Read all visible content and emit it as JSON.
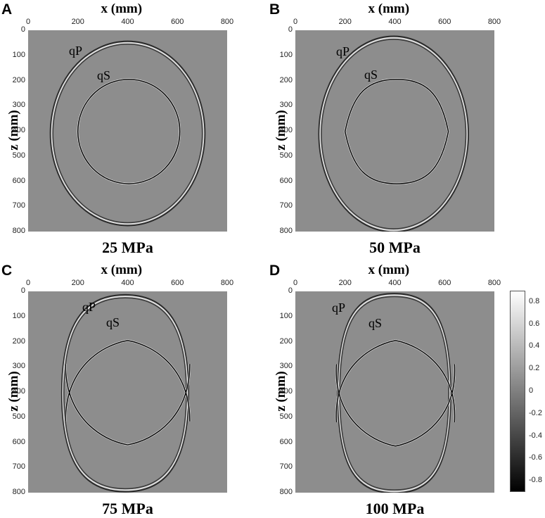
{
  "chart_data": [
    {
      "type": "heatmap",
      "panel": "A",
      "title": "25 MPa",
      "xlabel": "x (mm)",
      "ylabel": "z (mm)",
      "xlim": [
        0,
        800
      ],
      "ylim": [
        0,
        800
      ],
      "xticks": [
        "0",
        "200",
        "400",
        "600",
        "800"
      ],
      "yticks": [
        "0",
        "100",
        "200",
        "300",
        "400",
        "500",
        "600",
        "700",
        "800"
      ],
      "wavefronts": {
        "qP": {
          "label": "qP",
          "x_extent": [
            95,
            705
          ],
          "z_extent": [
            50,
            770
          ]
        },
        "qS": {
          "label": "qS",
          "x_extent": [
            200,
            610
          ],
          "z_extent": [
            195,
            610
          ]
        }
      }
    },
    {
      "type": "heatmap",
      "panel": "B",
      "title": "50 MPa",
      "xlabel": "x (mm)",
      "ylabel": "z (mm)",
      "xlim": [
        0,
        800
      ],
      "ylim": [
        0,
        800
      ],
      "xticks": [
        "0",
        "200",
        "400",
        "600",
        "800"
      ],
      "yticks": [
        "0",
        "100",
        "200",
        "300",
        "400",
        "500",
        "600",
        "700",
        "800"
      ],
      "wavefronts": {
        "qP": {
          "label": "qP",
          "x_extent": [
            100,
            690
          ],
          "z_extent": [
            30,
            795
          ]
        },
        "qS": {
          "label": "qS",
          "x_extent": [
            200,
            615
          ],
          "z_extent": [
            195,
            610
          ]
        }
      }
    },
    {
      "type": "heatmap",
      "panel": "C",
      "title": "75 MPa",
      "xlabel": "x (mm)",
      "ylabel": "z (mm)",
      "xlim": [
        0,
        800
      ],
      "ylim": [
        0,
        800
      ],
      "xticks": [
        "0",
        "200",
        "400",
        "600",
        "800"
      ],
      "yticks": [
        "0",
        "100",
        "200",
        "300",
        "400",
        "500",
        "600",
        "700",
        "800"
      ],
      "wavefronts": {
        "qP": {
          "label": "qP",
          "x_extent": [
            140,
            640
          ],
          "z_extent": [
            20,
            790
          ]
        },
        "qS": {
          "label": "qS",
          "x_extent": [
            150,
            650
          ],
          "z_extent": [
            195,
            610
          ]
        }
      }
    },
    {
      "type": "heatmap",
      "panel": "D",
      "title": "100 MPa",
      "xlabel": "x (mm)",
      "ylabel": "z (mm)",
      "xlim": [
        0,
        800
      ],
      "ylim": [
        0,
        800
      ],
      "xticks": [
        "0",
        "200",
        "400",
        "600",
        "800"
      ],
      "yticks": [
        "0",
        "100",
        "200",
        "300",
        "400",
        "500",
        "600",
        "700",
        "800"
      ],
      "wavefronts": {
        "qP": {
          "label": "qP",
          "x_extent": [
            175,
            620
          ],
          "z_extent": [
            15,
            795
          ]
        },
        "qS": {
          "label": "qS",
          "x_extent": [
            165,
            640
          ],
          "z_extent": [
            195,
            615
          ]
        }
      }
    }
  ],
  "colorbar": {
    "min": -0.9,
    "max": 0.9,
    "ticks": [
      "0.8",
      "0.6",
      "0.4",
      "0.2",
      "0",
      "-0.2",
      "-0.4",
      "-0.6",
      "-0.8"
    ],
    "colormap": "gray"
  },
  "colors": {
    "background_field": "#8d8d8d",
    "text": "#000000"
  }
}
